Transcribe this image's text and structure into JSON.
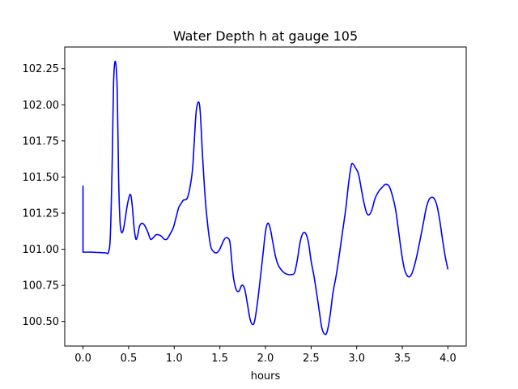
{
  "chart_data": {
    "type": "line",
    "title": "Water Depth h at gauge 105",
    "xlabel": "hours",
    "ylabel": "",
    "xlim": [
      -0.2,
      4.2
    ],
    "ylim": [
      100.33,
      102.4
    ],
    "grid": false,
    "legend": "none",
    "x_ticks": [
      {
        "value": 0.0,
        "label": "0.0"
      },
      {
        "value": 0.5,
        "label": "0.5"
      },
      {
        "value": 1.0,
        "label": "1.0"
      },
      {
        "value": 1.5,
        "label": "1.5"
      },
      {
        "value": 2.0,
        "label": "2.0"
      },
      {
        "value": 2.5,
        "label": "2.5"
      },
      {
        "value": 3.0,
        "label": "3.0"
      },
      {
        "value": 3.5,
        "label": "3.5"
      },
      {
        "value": 4.0,
        "label": "4.0"
      }
    ],
    "y_ticks": [
      {
        "value": 100.5,
        "label": "100.50"
      },
      {
        "value": 100.75,
        "label": "100.75"
      },
      {
        "value": 101.0,
        "label": "101.00"
      },
      {
        "value": 101.25,
        "label": "101.25"
      },
      {
        "value": 101.5,
        "label": "101.50"
      },
      {
        "value": 101.75,
        "label": "101.75"
      },
      {
        "value": 102.0,
        "label": "102.00"
      },
      {
        "value": 102.25,
        "label": "102.25"
      }
    ],
    "series": [
      {
        "color": "#0000ff",
        "points": [
          [
            0.0,
            101.44
          ],
          [
            0.0,
            100.98
          ],
          [
            0.05,
            100.98
          ],
          [
            0.1,
            100.98
          ],
          [
            0.15,
            100.978
          ],
          [
            0.2,
            100.977
          ],
          [
            0.25,
            100.975
          ],
          [
            0.28,
            100.98
          ],
          [
            0.3,
            101.1
          ],
          [
            0.32,
            101.6
          ],
          [
            0.335,
            102.15
          ],
          [
            0.355,
            102.3
          ],
          [
            0.375,
            102.1
          ],
          [
            0.39,
            101.5
          ],
          [
            0.405,
            101.2
          ],
          [
            0.42,
            101.12
          ],
          [
            0.44,
            101.13
          ],
          [
            0.46,
            101.2
          ],
          [
            0.49,
            101.32
          ],
          [
            0.52,
            101.38
          ],
          [
            0.54,
            101.3
          ],
          [
            0.56,
            101.15
          ],
          [
            0.58,
            101.07
          ],
          [
            0.6,
            101.1
          ],
          [
            0.62,
            101.16
          ],
          [
            0.65,
            101.18
          ],
          [
            0.68,
            101.16
          ],
          [
            0.71,
            101.12
          ],
          [
            0.74,
            101.07
          ],
          [
            0.77,
            101.08
          ],
          [
            0.8,
            101.1
          ],
          [
            0.83,
            101.1
          ],
          [
            0.86,
            101.09
          ],
          [
            0.89,
            101.07
          ],
          [
            0.92,
            101.07
          ],
          [
            0.95,
            101.1
          ],
          [
            0.99,
            101.15
          ],
          [
            1.02,
            101.22
          ],
          [
            1.05,
            101.29
          ],
          [
            1.08,
            101.32
          ],
          [
            1.1,
            101.34
          ],
          [
            1.14,
            101.35
          ],
          [
            1.17,
            101.42
          ],
          [
            1.2,
            101.55
          ],
          [
            1.22,
            101.75
          ],
          [
            1.24,
            101.95
          ],
          [
            1.265,
            102.02
          ],
          [
            1.285,
            101.95
          ],
          [
            1.31,
            101.65
          ],
          [
            1.34,
            101.35
          ],
          [
            1.37,
            101.15
          ],
          [
            1.4,
            101.02
          ],
          [
            1.43,
            100.985
          ],
          [
            1.46,
            100.975
          ],
          [
            1.49,
            100.99
          ],
          [
            1.52,
            101.03
          ],
          [
            1.55,
            101.07
          ],
          [
            1.58,
            101.08
          ],
          [
            1.61,
            101.05
          ],
          [
            1.63,
            100.92
          ],
          [
            1.65,
            100.8
          ],
          [
            1.68,
            100.72
          ],
          [
            1.71,
            100.71
          ],
          [
            1.74,
            100.75
          ],
          [
            1.77,
            100.73
          ],
          [
            1.8,
            100.63
          ],
          [
            1.83,
            100.52
          ],
          [
            1.855,
            100.48
          ],
          [
            1.88,
            100.5
          ],
          [
            1.91,
            100.62
          ],
          [
            1.94,
            100.78
          ],
          [
            1.97,
            100.95
          ],
          [
            2.0,
            101.12
          ],
          [
            2.025,
            101.18
          ],
          [
            2.05,
            101.15
          ],
          [
            2.08,
            101.05
          ],
          [
            2.11,
            100.95
          ],
          [
            2.14,
            100.89
          ],
          [
            2.17,
            100.86
          ],
          [
            2.21,
            100.835
          ],
          [
            2.25,
            100.825
          ],
          [
            2.29,
            100.825
          ],
          [
            2.32,
            100.84
          ],
          [
            2.35,
            100.93
          ],
          [
            2.38,
            101.05
          ],
          [
            2.41,
            101.11
          ],
          [
            2.44,
            101.11
          ],
          [
            2.47,
            101.05
          ],
          [
            2.5,
            100.92
          ],
          [
            2.53,
            100.82
          ],
          [
            2.56,
            100.7
          ],
          [
            2.59,
            100.57
          ],
          [
            2.62,
            100.45
          ],
          [
            2.655,
            100.41
          ],
          [
            2.68,
            100.44
          ],
          [
            2.71,
            100.55
          ],
          [
            2.74,
            100.7
          ],
          [
            2.77,
            100.8
          ],
          [
            2.8,
            100.92
          ],
          [
            2.84,
            101.1
          ],
          [
            2.88,
            101.28
          ],
          [
            2.91,
            101.45
          ],
          [
            2.94,
            101.58
          ],
          [
            2.96,
            101.59
          ],
          [
            2.99,
            101.56
          ],
          [
            3.02,
            101.52
          ],
          [
            3.05,
            101.42
          ],
          [
            3.08,
            101.32
          ],
          [
            3.11,
            101.25
          ],
          [
            3.14,
            101.24
          ],
          [
            3.17,
            101.28
          ],
          [
            3.2,
            101.35
          ],
          [
            3.24,
            101.4
          ],
          [
            3.28,
            101.43
          ],
          [
            3.32,
            101.45
          ],
          [
            3.36,
            101.43
          ],
          [
            3.4,
            101.35
          ],
          [
            3.43,
            101.26
          ],
          [
            3.46,
            101.12
          ],
          [
            3.49,
            100.98
          ],
          [
            3.52,
            100.87
          ],
          [
            3.55,
            100.82
          ],
          [
            3.58,
            100.81
          ],
          [
            3.61,
            100.84
          ],
          [
            3.65,
            100.93
          ],
          [
            3.69,
            101.05
          ],
          [
            3.73,
            101.18
          ],
          [
            3.76,
            101.28
          ],
          [
            3.79,
            101.34
          ],
          [
            3.82,
            101.36
          ],
          [
            3.85,
            101.35
          ],
          [
            3.88,
            101.3
          ],
          [
            3.91,
            101.2
          ],
          [
            3.94,
            101.07
          ],
          [
            3.97,
            100.95
          ],
          [
            4.0,
            100.86
          ]
        ]
      }
    ]
  }
}
